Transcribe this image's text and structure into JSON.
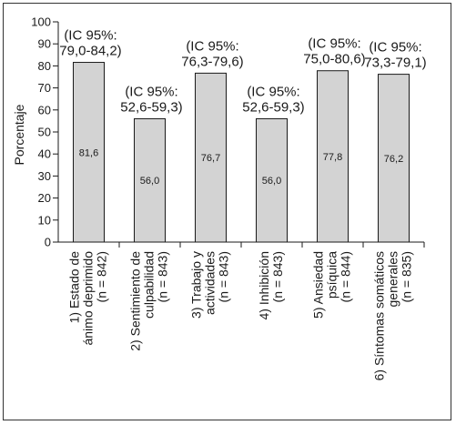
{
  "chart_data": {
    "type": "bar",
    "ylabel": "Porcentaje",
    "ylim": [
      0,
      100
    ],
    "yticks": [
      0,
      10,
      20,
      30,
      40,
      50,
      60,
      70,
      80,
      90,
      100
    ],
    "bar_color": "#d3d3d3",
    "grid": false,
    "categories": [
      [
        "1) Estado de",
        "ánimo deprimido",
        "(n = 842)"
      ],
      [
        "2) Sentimiento de",
        "culpabilidad",
        "(n = 843)"
      ],
      [
        "3) Trabajo y",
        "actividades",
        "(n = 843)"
      ],
      [
        "4) Inhibición",
        "(n = 843)"
      ],
      [
        "5) Ansiedad",
        "psíquica",
        "(n = 844)"
      ],
      [
        "6) Síntomas somáticos",
        "generales",
        "(n = 835)"
      ]
    ],
    "values": [
      81.6,
      56.0,
      76.7,
      56.0,
      77.8,
      76.2
    ],
    "value_labels": [
      "81,6",
      "56,0",
      "76,7",
      "56,0",
      "77,8",
      "76,2"
    ],
    "ci_labels": [
      [
        "(IC 95%:",
        "79,0-84,2)"
      ],
      [
        "(IC 95%:",
        "52,6-59,3)"
      ],
      [
        "(IC 95%:",
        "76,3-79,6)"
      ],
      [
        "(IC 95%:",
        "52,6-59,3)"
      ],
      [
        "(IC 95%:",
        "75,0-80,6)"
      ],
      [
        "(IC 95%:",
        "73,3-79,1)"
      ]
    ]
  }
}
